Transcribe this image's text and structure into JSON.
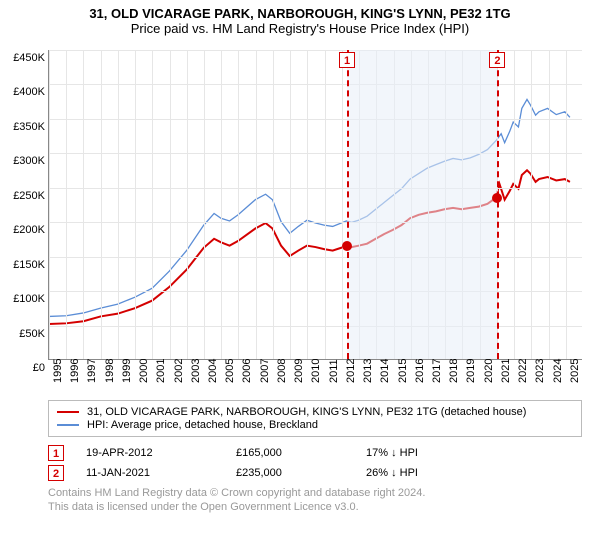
{
  "title": {
    "line1": "31, OLD VICARAGE PARK, NARBOROUGH, KING'S LYNN, PE32 1TG",
    "line2": "Price paid vs. HM Land Registry's House Price Index (HPI)",
    "fontsize": 13
  },
  "colors": {
    "property": "#d40000",
    "hpi": "#5b8dd6",
    "shaded": "#e8eef7",
    "grid": "#e6e6e6",
    "axis": "#888888",
    "footer": "#999999",
    "text": "#333333"
  },
  "chart": {
    "type": "line",
    "ylim": [
      0,
      450000
    ],
    "ytick_step": 50000,
    "yticks": [
      "£0",
      "£50K",
      "£100K",
      "£150K",
      "£200K",
      "£250K",
      "£300K",
      "£350K",
      "£400K",
      "£450K"
    ],
    "x_labels": [
      "1995",
      "1996",
      "1997",
      "1998",
      "1999",
      "2000",
      "2001",
      "2002",
      "2003",
      "2004",
      "2005",
      "2006",
      "2007",
      "2008",
      "2009",
      "2010",
      "2011",
      "2012",
      "2013",
      "2014",
      "2015",
      "2016",
      "2017",
      "2018",
      "2019",
      "2020",
      "2021",
      "2022",
      "2023",
      "2024",
      "2025"
    ],
    "x_start": 1995,
    "x_end": 2026,
    "tick_fontsize": 11,
    "line_width_property": 2,
    "line_width_hpi": 1.3,
    "series_property": [
      [
        1995.0,
        51000
      ],
      [
        1996.0,
        52000
      ],
      [
        1997.0,
        55000
      ],
      [
        1998.0,
        62000
      ],
      [
        1999.0,
        66000
      ],
      [
        2000.0,
        74000
      ],
      [
        2001.0,
        85000
      ],
      [
        2002.0,
        105000
      ],
      [
        2003.0,
        130000
      ],
      [
        2004.0,
        162000
      ],
      [
        2004.6,
        175000
      ],
      [
        2005.0,
        170000
      ],
      [
        2005.5,
        165000
      ],
      [
        2006.0,
        172000
      ],
      [
        2007.0,
        190000
      ],
      [
        2007.6,
        198000
      ],
      [
        2008.0,
        190000
      ],
      [
        2008.5,
        165000
      ],
      [
        2009.0,
        150000
      ],
      [
        2009.5,
        158000
      ],
      [
        2010.0,
        165000
      ],
      [
        2010.5,
        163000
      ],
      [
        2011.0,
        160000
      ],
      [
        2011.5,
        158000
      ],
      [
        2012.0,
        162000
      ],
      [
        2012.3,
        165000
      ],
      [
        2012.6,
        163000
      ],
      [
        2013.0,
        165000
      ],
      [
        2013.5,
        168000
      ],
      [
        2014.0,
        175000
      ],
      [
        2014.5,
        182000
      ],
      [
        2015.0,
        188000
      ],
      [
        2015.5,
        195000
      ],
      [
        2016.0,
        205000
      ],
      [
        2016.5,
        210000
      ],
      [
        2017.0,
        213000
      ],
      [
        2017.5,
        215000
      ],
      [
        2018.0,
        218000
      ],
      [
        2018.5,
        220000
      ],
      [
        2019.0,
        218000
      ],
      [
        2019.5,
        220000
      ],
      [
        2020.0,
        222000
      ],
      [
        2020.5,
        226000
      ],
      [
        2021.0,
        235000
      ],
      [
        2021.2,
        255000
      ],
      [
        2021.5,
        232000
      ],
      [
        2021.8,
        245000
      ],
      [
        2022.0,
        255000
      ],
      [
        2022.3,
        248000
      ],
      [
        2022.5,
        268000
      ],
      [
        2022.8,
        275000
      ],
      [
        2023.0,
        270000
      ],
      [
        2023.3,
        258000
      ],
      [
        2023.5,
        262000
      ],
      [
        2024.0,
        265000
      ],
      [
        2024.5,
        260000
      ],
      [
        2025.0,
        262000
      ],
      [
        2025.3,
        258000
      ]
    ],
    "series_hpi": [
      [
        1995.0,
        62000
      ],
      [
        1996.0,
        63000
      ],
      [
        1997.0,
        67000
      ],
      [
        1998.0,
        74000
      ],
      [
        1999.0,
        80000
      ],
      [
        2000.0,
        90000
      ],
      [
        2001.0,
        103000
      ],
      [
        2002.0,
        128000
      ],
      [
        2003.0,
        158000
      ],
      [
        2004.0,
        195000
      ],
      [
        2004.6,
        212000
      ],
      [
        2005.0,
        205000
      ],
      [
        2005.5,
        201000
      ],
      [
        2006.0,
        210000
      ],
      [
        2007.0,
        232000
      ],
      [
        2007.6,
        240000
      ],
      [
        2008.0,
        232000
      ],
      [
        2008.5,
        200000
      ],
      [
        2009.0,
        183000
      ],
      [
        2009.5,
        193000
      ],
      [
        2010.0,
        202000
      ],
      [
        2010.5,
        198000
      ],
      [
        2011.0,
        195000
      ],
      [
        2011.5,
        193000
      ],
      [
        2012.0,
        198000
      ],
      [
        2012.3,
        201000
      ],
      [
        2012.6,
        199000
      ],
      [
        2013.0,
        202000
      ],
      [
        2013.5,
        208000
      ],
      [
        2014.0,
        218000
      ],
      [
        2014.5,
        228000
      ],
      [
        2015.0,
        238000
      ],
      [
        2015.5,
        248000
      ],
      [
        2016.0,
        262000
      ],
      [
        2016.5,
        270000
      ],
      [
        2017.0,
        278000
      ],
      [
        2017.5,
        283000
      ],
      [
        2018.0,
        288000
      ],
      [
        2018.5,
        292000
      ],
      [
        2019.0,
        290000
      ],
      [
        2019.5,
        293000
      ],
      [
        2020.0,
        298000
      ],
      [
        2020.5,
        305000
      ],
      [
        2021.0,
        318000
      ],
      [
        2021.3,
        328000
      ],
      [
        2021.5,
        315000
      ],
      [
        2021.8,
        332000
      ],
      [
        2022.0,
        345000
      ],
      [
        2022.3,
        338000
      ],
      [
        2022.5,
        365000
      ],
      [
        2022.8,
        378000
      ],
      [
        2023.0,
        370000
      ],
      [
        2023.3,
        355000
      ],
      [
        2023.5,
        360000
      ],
      [
        2024.0,
        365000
      ],
      [
        2024.5,
        356000
      ],
      [
        2025.0,
        360000
      ],
      [
        2025.3,
        352000
      ]
    ],
    "shaded_from": 2012.3,
    "shaded_to": 2021.03
  },
  "transactions": [
    {
      "n": "1",
      "date": "19-APR-2012",
      "x": 2012.3,
      "price_num": 165000,
      "price": "£165,000",
      "diff": "17% ↓ HPI"
    },
    {
      "n": "2",
      "date": "11-JAN-2021",
      "x": 2021.03,
      "price_num": 235000,
      "price": "£235,000",
      "diff": "26% ↓ HPI"
    }
  ],
  "legend": {
    "property": "31, OLD VICARAGE PARK, NARBOROUGH, KING'S LYNN, PE32 1TG (detached house)",
    "hpi": "HPI: Average price, detached house, Breckland",
    "fontsize": 11
  },
  "footer": {
    "line1": "Contains HM Land Registry data © Crown copyright and database right 2024.",
    "line2": "This data is licensed under the Open Government Licence v3.0.",
    "fontsize": 11
  }
}
